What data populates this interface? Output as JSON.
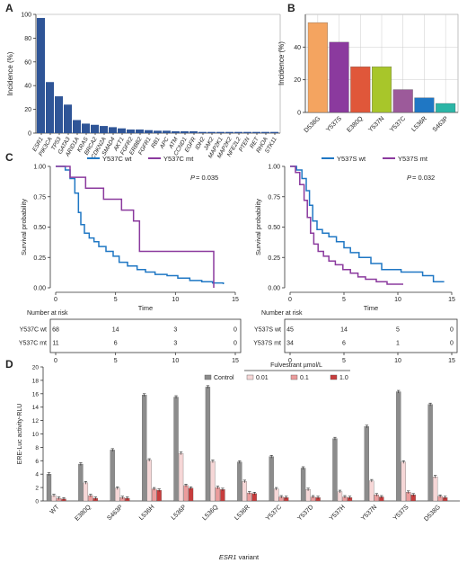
{
  "panels": {
    "A": "A",
    "B": "B",
    "C": "C",
    "D": "D"
  },
  "chart_data": [
    {
      "id": "A",
      "type": "bar",
      "ylabel": "Incidence (%)",
      "ylim": [
        0,
        100
      ],
      "yticks": [
        0,
        20,
        40,
        60,
        80,
        100
      ],
      "grid": false,
      "color": "#2f5597",
      "categories": [
        "ESR1",
        "PIK3CA",
        "TP53",
        "GATA3",
        "ARID1A",
        "KRAS",
        "BRCA2",
        "CDKN2A",
        "SMAD4",
        "AKT1",
        "FGFR2",
        "ERBB2",
        "FGFR1",
        "RB1",
        "APC",
        "ATM",
        "CCND1",
        "EGFR",
        "IDH2",
        "JAK2",
        "MAP2K1",
        "MAP2K2",
        "NFE2L2",
        "PTEN",
        "RET",
        "RHOA",
        "STK11"
      ],
      "values": [
        97,
        43,
        31,
        24,
        11,
        8,
        7,
        6,
        5,
        4,
        3,
        3,
        2.5,
        2,
        2,
        1.5,
        1.5,
        1.5,
        1,
        1,
        1,
        1,
        1,
        1,
        1,
        1,
        1
      ]
    },
    {
      "id": "B",
      "type": "bar",
      "ylabel": "Incidence (%)",
      "ylim": [
        0,
        60
      ],
      "yticks": [
        0,
        20,
        40
      ],
      "grid": true,
      "categories": [
        "D538G",
        "Y537S",
        "E380Q",
        "Y537N",
        "Y537C",
        "L536R",
        "S463P"
      ],
      "values": [
        55,
        43,
        28,
        28,
        14,
        9,
        5.5
      ],
      "colors": [
        "#f4a460",
        "#8b3a9e",
        "#e0573a",
        "#a8c62a",
        "#9c5a9a",
        "#1f77c4",
        "#2bb5a6"
      ]
    },
    {
      "id": "C-left",
      "type": "line",
      "xlabel": "Time",
      "ylabel": "Survival probability",
      "xlim": [
        0,
        15
      ],
      "ylim": [
        0,
        1
      ],
      "xticks": [
        0,
        5,
        10,
        15
      ],
      "yticks": [
        0.0,
        0.25,
        0.5,
        0.75,
        1.0
      ],
      "ytick_labels": [
        "0.00",
        "0.25",
        "0.50",
        "0.75",
        "1.00"
      ],
      "legend": "top",
      "pvalue": "= 0.035",
      "p_label": "P",
      "series": [
        {
          "name": "Y537C wt",
          "color": "#1f77c4",
          "x": [
            0,
            0.8,
            1.2,
            1.6,
            1.9,
            2.1,
            2.4,
            2.8,
            3.2,
            3.6,
            4.2,
            4.8,
            5.3,
            6.0,
            6.8,
            7.5,
            8.3,
            9.3,
            10.2,
            11.2,
            12.2,
            13.1,
            14.0
          ],
          "y": [
            1.0,
            0.97,
            0.9,
            0.78,
            0.62,
            0.52,
            0.45,
            0.41,
            0.38,
            0.34,
            0.3,
            0.26,
            0.21,
            0.18,
            0.15,
            0.13,
            0.11,
            0.1,
            0.08,
            0.06,
            0.05,
            0.04,
            0.03
          ]
        },
        {
          "name": "Y537C mt",
          "color": "#8b3a9e",
          "x": [
            0,
            1.2,
            2.5,
            4.0,
            5.5,
            6.5,
            7.0,
            13.2,
            13.2
          ],
          "y": [
            1.0,
            0.91,
            0.82,
            0.73,
            0.64,
            0.55,
            0.3,
            0.3,
            0.0
          ]
        }
      ],
      "risk_table": {
        "title": "Number at risk",
        "times": [
          0,
          5,
          10,
          15
        ],
        "rows": [
          {
            "label": "Y537C wt",
            "counts": [
              "68",
              "14",
              "3",
              "0"
            ]
          },
          {
            "label": "Y537C mt",
            "counts": [
              "11",
              "6",
              "3",
              "0"
            ]
          }
        ]
      }
    },
    {
      "id": "C-right",
      "type": "line",
      "xlabel": "Time",
      "ylabel": "Survival probability",
      "xlim": [
        0,
        15
      ],
      "ylim": [
        0,
        1
      ],
      "xticks": [
        0,
        5,
        10,
        15
      ],
      "yticks": [
        0.0,
        0.25,
        0.5,
        0.75,
        1.0
      ],
      "ytick_labels": [
        "0.00",
        "0.25",
        "0.50",
        "0.75",
        "1.00"
      ],
      "legend": "top",
      "pvalue": "= 0.032",
      "p_label": "P",
      "series": [
        {
          "name": "Y537S wt",
          "color": "#1f77c4",
          "x": [
            0,
            0.6,
            1.1,
            1.5,
            1.8,
            2.1,
            2.5,
            3.0,
            3.6,
            4.3,
            5.0,
            5.6,
            6.4,
            7.5,
            8.5,
            9.3,
            10.3,
            11.3,
            12.3,
            13.3,
            14.3
          ],
          "y": [
            1.0,
            0.97,
            0.9,
            0.8,
            0.68,
            0.55,
            0.48,
            0.45,
            0.42,
            0.38,
            0.33,
            0.29,
            0.25,
            0.2,
            0.15,
            0.15,
            0.13,
            0.13,
            0.1,
            0.05,
            0.05
          ]
        },
        {
          "name": "Y537S mt",
          "color": "#8b3a9e",
          "x": [
            0,
            0.5,
            0.9,
            1.3,
            1.6,
            1.9,
            2.2,
            2.6,
            3.1,
            3.6,
            4.2,
            4.9,
            5.6,
            6.3,
            7.0,
            8.0,
            9.0,
            10.5
          ],
          "y": [
            1.0,
            0.95,
            0.85,
            0.72,
            0.58,
            0.45,
            0.36,
            0.3,
            0.26,
            0.22,
            0.19,
            0.15,
            0.12,
            0.09,
            0.07,
            0.05,
            0.03,
            0.03
          ]
        }
      ],
      "risk_table": {
        "title": "Number at risk",
        "times": [
          0,
          5,
          10,
          15
        ],
        "rows": [
          {
            "label": "Y537S wt",
            "counts": [
              "45",
              "14",
              "5",
              "0"
            ]
          },
          {
            "label": "Y537S mt",
            "counts": [
              "34",
              "6",
              "1",
              "0"
            ]
          }
        ]
      }
    },
    {
      "id": "D",
      "type": "bar",
      "ylabel": "ERE-Luc activity-RLU",
      "xlabel_prefix": "ESR1",
      "xlabel_suffix": " variant",
      "ylim": [
        0,
        20
      ],
      "yticks": [
        0,
        2,
        4,
        6,
        8,
        10,
        12,
        14,
        16,
        18,
        20
      ],
      "legend_title": "Fulvestrant µmol/L",
      "categories": [
        "WT",
        "E380Q",
        "S463P",
        "L536H",
        "L536P",
        "L536Q",
        "L536R",
        "Y537C",
        "Y537D",
        "Y537H",
        "Y537N",
        "Y537S",
        "D538G"
      ],
      "series": [
        {
          "name": "Control",
          "color": "#8c8c8c",
          "values": [
            4.0,
            5.5,
            7.6,
            15.8,
            15.5,
            17.0,
            5.8,
            6.6,
            4.9,
            9.3,
            11.1,
            16.3,
            14.4
          ]
        },
        {
          "name": "0.01",
          "color": "#f6d7d7",
          "values": [
            0.8,
            2.7,
            1.9,
            6.1,
            7.1,
            5.9,
            2.9,
            1.8,
            1.7,
            1.4,
            3.0,
            5.8,
            3.6
          ]
        },
        {
          "name": "0.1",
          "color": "#eb9c9c",
          "values": [
            0.4,
            0.8,
            0.5,
            1.8,
            2.3,
            2.0,
            1.2,
            0.6,
            0.6,
            0.6,
            0.9,
            1.3,
            0.7
          ]
        },
        {
          "name": "1.0",
          "color": "#c83c3c",
          "values": [
            0.3,
            0.4,
            0.4,
            1.6,
            1.9,
            1.7,
            1.1,
            0.5,
            0.5,
            0.5,
            0.6,
            0.9,
            0.5
          ]
        }
      ]
    }
  ]
}
